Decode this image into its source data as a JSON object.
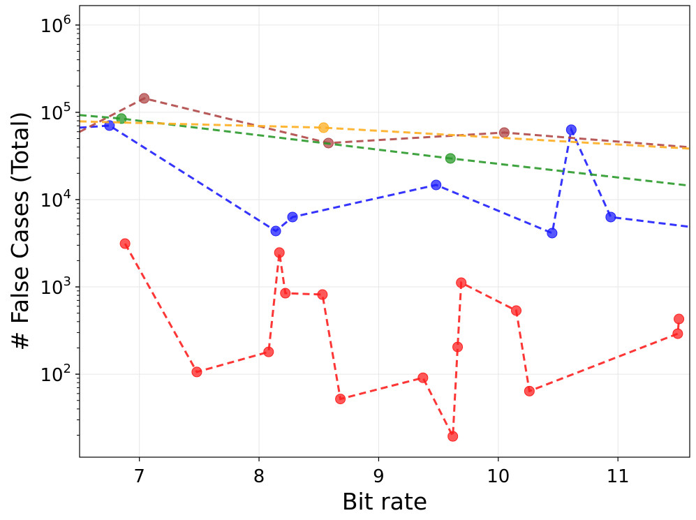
{
  "chart_data": {
    "type": "line",
    "title": "",
    "xlabel": "Bit rate",
    "ylabel": "# False Cases (Total)",
    "yscale": "log",
    "xlim": [
      6.5,
      11.6
    ],
    "ylim": [
      11.2,
      1670000
    ],
    "grid": true,
    "x_ticks": [
      7,
      8,
      9,
      10,
      11
    ],
    "x_tick_labels": [
      "7",
      "8",
      "9",
      "10",
      "11"
    ],
    "y_ticks": [
      100,
      1000,
      10000,
      100000,
      1000000
    ],
    "y_tick_labels": [
      {
        "base": "10",
        "exp": "2"
      },
      {
        "base": "10",
        "exp": "3"
      },
      {
        "base": "10",
        "exp": "4"
      },
      {
        "base": "10",
        "exp": "5"
      },
      {
        "base": "10",
        "exp": "6"
      }
    ],
    "series": [
      {
        "name": "red",
        "color": "#ff2020",
        "points": [
          [
            6.88,
            3130
          ],
          [
            7.48,
            106
          ],
          [
            8.08,
            180
          ],
          [
            8.17,
            2470
          ],
          [
            8.22,
            847
          ],
          [
            8.53,
            817
          ],
          [
            8.68,
            52
          ],
          [
            9.37,
            91
          ],
          [
            9.62,
            19.4
          ],
          [
            9.66,
            205
          ],
          [
            9.69,
            1117
          ],
          [
            10.15,
            535
          ],
          [
            10.26,
            64
          ],
          [
            11.5,
            291
          ],
          [
            11.51,
            429
          ]
        ],
        "line_start": null,
        "line_end": null
      },
      {
        "name": "blue",
        "color": "#1f1fff",
        "points": [
          [
            6.75,
            70500
          ],
          [
            8.14,
            4365
          ],
          [
            8.28,
            6310
          ],
          [
            9.48,
            14720
          ],
          [
            10.45,
            4130
          ],
          [
            10.61,
            63100
          ],
          [
            10.94,
            6310
          ]
        ],
        "line_start": [
          6.5,
          66700
        ],
        "line_end": [
          11.6,
          4880
        ]
      },
      {
        "name": "brown",
        "color": "#b04848",
        "points": [
          [
            7.04,
            144500
          ],
          [
            8.58,
            44460
          ],
          [
            10.05,
            58600
          ]
        ],
        "line_start": [
          6.5,
          59700
        ],
        "line_end": [
          11.6,
          39800
        ]
      },
      {
        "name": "green",
        "color": "#2a9a2a",
        "points": [
          [
            6.85,
            84700
          ],
          [
            9.6,
            29650
          ]
        ],
        "line_start": [
          6.5,
          92900
        ],
        "line_end": [
          11.6,
          14450
        ]
      },
      {
        "name": "orange",
        "color": "#ffae20",
        "points": [
          [
            8.54,
            66700
          ]
        ],
        "line_start": [
          6.5,
          78700
        ],
        "line_end": [
          11.6,
          38400
        ]
      }
    ]
  }
}
